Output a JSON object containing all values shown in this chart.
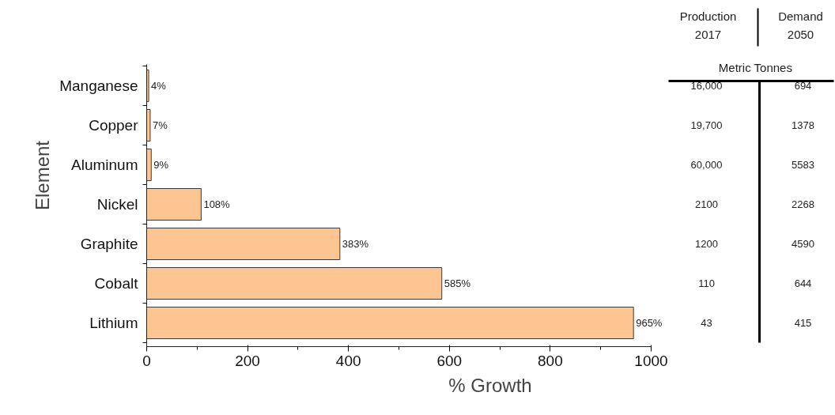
{
  "chart_data": {
    "type": "bar",
    "orientation": "horizontal",
    "xlabel": "% Growth",
    "ylabel": "Element",
    "categories": [
      "Manganese",
      "Copper",
      "Aluminum",
      "Nickel",
      "Graphite",
      "Cobalt",
      "Lithium"
    ],
    "values": [
      4,
      7,
      9,
      108,
      383,
      585,
      965
    ],
    "value_labels": [
      "4%",
      "7%",
      "9%",
      "108%",
      "383%",
      "585%",
      "965%"
    ],
    "color": "#fdc591",
    "xlim": [
      0,
      1000
    ],
    "xticks": [
      0,
      200,
      400,
      600,
      800,
      1000
    ],
    "grid": false,
    "annotations": [
      "Production 2017",
      "Demand 2050",
      "Metric Tonnes",
      "16,000",
      "694",
      "19,700",
      "1378",
      "60,000",
      "5583",
      "2100",
      "2268",
      "1200",
      "4590",
      "110",
      "644",
      "43",
      "415"
    ]
  }
}
